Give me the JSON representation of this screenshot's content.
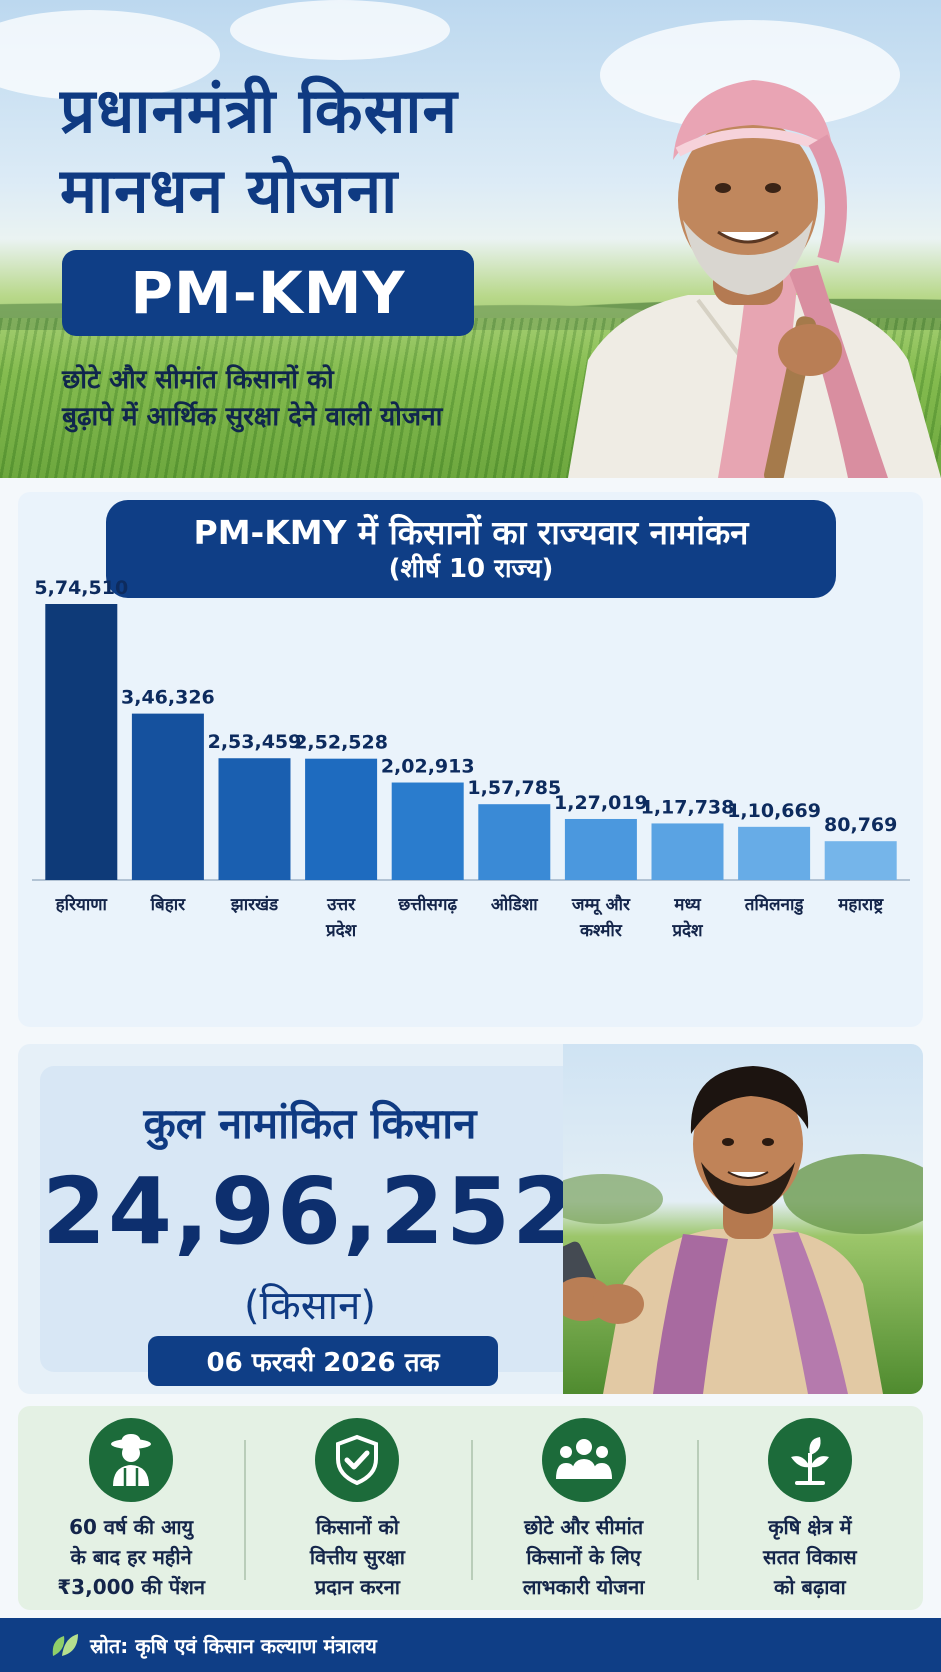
{
  "hero": {
    "title_line1": "प्रधानमंत्री किसान",
    "title_line2": "मानधन योजना",
    "badge": "PM-KMY",
    "subtitle_line1": "छोटे और सीमांत किसानों को",
    "subtitle_line2": "बुढ़ापे में आर्थिक सुरक्षा देने वाली योजना"
  },
  "chart_header": {
    "title": "PM-KMY में किसानों का राज्यवार नामांकन",
    "subtitle": "(शीर्ष 10 राज्य)"
  },
  "chart_data": {
    "type": "bar",
    "title": "PM-KMY में किसानों का राज्यवार नामांकन",
    "subtitle": "(शीर्ष 10 राज्य)",
    "categories": [
      [
        "हरियाणा"
      ],
      [
        "बिहार"
      ],
      [
        "झारखंड"
      ],
      [
        "उत्तर",
        "प्रदेश"
      ],
      [
        "छत्तीसगढ़"
      ],
      [
        "ओडिशा"
      ],
      [
        "जम्मू और",
        "कश्मीर"
      ],
      [
        "मध्य",
        "प्रदेश"
      ],
      [
        "तमिलनाडु"
      ],
      [
        "महाराष्ट्र"
      ]
    ],
    "values": [
      574510,
      346326,
      253459,
      252528,
      202913,
      157785,
      127019,
      117738,
      110669,
      80769
    ],
    "value_labels": [
      "5,74,510",
      "3,46,326",
      "2,53,459",
      "2,52,528",
      "2,02,913",
      "1,57,785",
      "1,27,019",
      "1,17,738",
      "1,10,669",
      "80,769"
    ],
    "xlabel": "",
    "ylabel": "",
    "ylim": [
      0,
      574510
    ],
    "grid": false,
    "legend": "none",
    "bar_colors": [
      "#0e3a78",
      "#15519e",
      "#1a5fb0",
      "#1e6bbf",
      "#2a7ccd",
      "#3a8ad6",
      "#4b98de",
      "#5aa3e3",
      "#67ace7",
      "#75b5ea"
    ]
  },
  "total": {
    "label": "कुल नामांकित किसान",
    "value": "24,96,252",
    "unit": "(किसान)",
    "date": "06 फरवरी 2026 तक"
  },
  "benefits": [
    {
      "icon": "farmer-icon",
      "line1": "60 वर्ष की आयु",
      "line2": "के बाद हर महीने",
      "line3": "₹3,000 की पेंशन"
    },
    {
      "icon": "shield-check-icon",
      "line1": "किसानों को",
      "line2": "वित्तीय सुरक्षा",
      "line3": "प्रदान करना"
    },
    {
      "icon": "people-icon",
      "line1": "छोटे और सीमांत",
      "line2": "किसानों के लिए",
      "line3": "लाभकारी योजना"
    },
    {
      "icon": "sprout-icon",
      "line1": "कृषि क्षेत्र में",
      "line2": "सतत विकास",
      "line3": "को बढ़ावा"
    }
  ],
  "footer": {
    "icon": "leaf-icon",
    "text": "स्रोत: कृषि एवं किसान कल्याण मंत्रालय"
  },
  "colors": {
    "navy": "#0f3e86",
    "benefit_green": "#1c6b3a",
    "benefits_bg": "#e4f1e4",
    "chart_bg": "#eaf3fb"
  }
}
